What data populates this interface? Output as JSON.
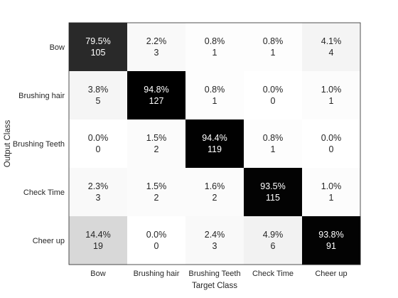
{
  "chart_data": {
    "type": "heatmap",
    "xlabel": "Target Class",
    "ylabel": "Output Class",
    "x_categories": [
      "Bow",
      "Brushing hair",
      "Brushing Teeth",
      "Check Time",
      "Cheer up"
    ],
    "y_categories": [
      "Bow",
      "Brushing hair",
      "Brushing Teeth",
      "Check Time",
      "Cheer up"
    ],
    "percent": [
      [
        "79.5%",
        "2.2%",
        "0.8%",
        "0.8%",
        "4.1%"
      ],
      [
        "3.8%",
        "94.8%",
        "0.8%",
        "0.0%",
        "1.0%"
      ],
      [
        "0.0%",
        "1.5%",
        "94.4%",
        "0.8%",
        "0.0%"
      ],
      [
        "2.3%",
        "1.5%",
        "1.6%",
        "93.5%",
        "1.0%"
      ],
      [
        "14.4%",
        "0.0%",
        "2.4%",
        "4.9%",
        "93.8%"
      ]
    ],
    "counts": [
      [
        105,
        3,
        1,
        1,
        4
      ],
      [
        5,
        127,
        1,
        0,
        1
      ],
      [
        0,
        2,
        119,
        1,
        0
      ],
      [
        3,
        2,
        2,
        115,
        1
      ],
      [
        19,
        0,
        3,
        6,
        91
      ]
    ],
    "colormap": "gray-reversed",
    "max_percent": 94.8,
    "grid": false
  },
  "colors": {
    "axis": "#262626",
    "dark_text": "#ffffff",
    "light_text": "#262626"
  }
}
